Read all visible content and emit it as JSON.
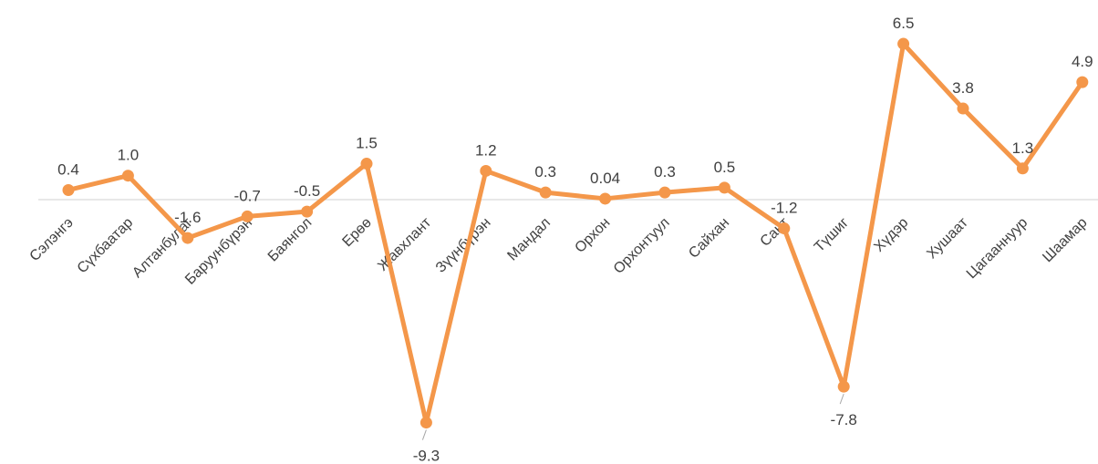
{
  "chart_data": {
    "type": "line",
    "title": "",
    "xlabel": "",
    "ylabel": "",
    "categories": [
      "Сэлэнгэ",
      "Сүхбаатар",
      "Алтанбулаг",
      "Баруунбүрэн",
      "Баянгол",
      "Ерөө",
      "Жавхлант",
      "Зүүнбүрэн",
      "Мандал",
      "Орхон",
      "Орхонтуул",
      "Сайхан",
      "Сант",
      "Түшиг",
      "Хүдэр",
      "Хушаат",
      "Цагааннуур",
      "Шаамар"
    ],
    "values": [
      0.4,
      1.0,
      -1.6,
      -0.7,
      -0.5,
      1.5,
      -9.3,
      1.2,
      0.3,
      0.04,
      0.3,
      0.5,
      -1.2,
      -7.8,
      6.5,
      3.8,
      1.3,
      4.9
    ],
    "value_labels": [
      "0.4",
      "1.0",
      "-1.6",
      "-0.7",
      "-0.5",
      "1.5",
      "-9.3",
      "1.2",
      "0.3",
      "0.04",
      "0.3",
      "0.5",
      "-1.2",
      "-7.8",
      "6.5",
      "3.8",
      "1.3",
      "4.9"
    ],
    "ylim": [
      -10.5,
      7.5
    ],
    "legend": "none",
    "grid": false,
    "zero_line": true,
    "colors": {
      "line": "#F4974A",
      "axis": "#D9D9D9",
      "text": "#404040"
    }
  }
}
